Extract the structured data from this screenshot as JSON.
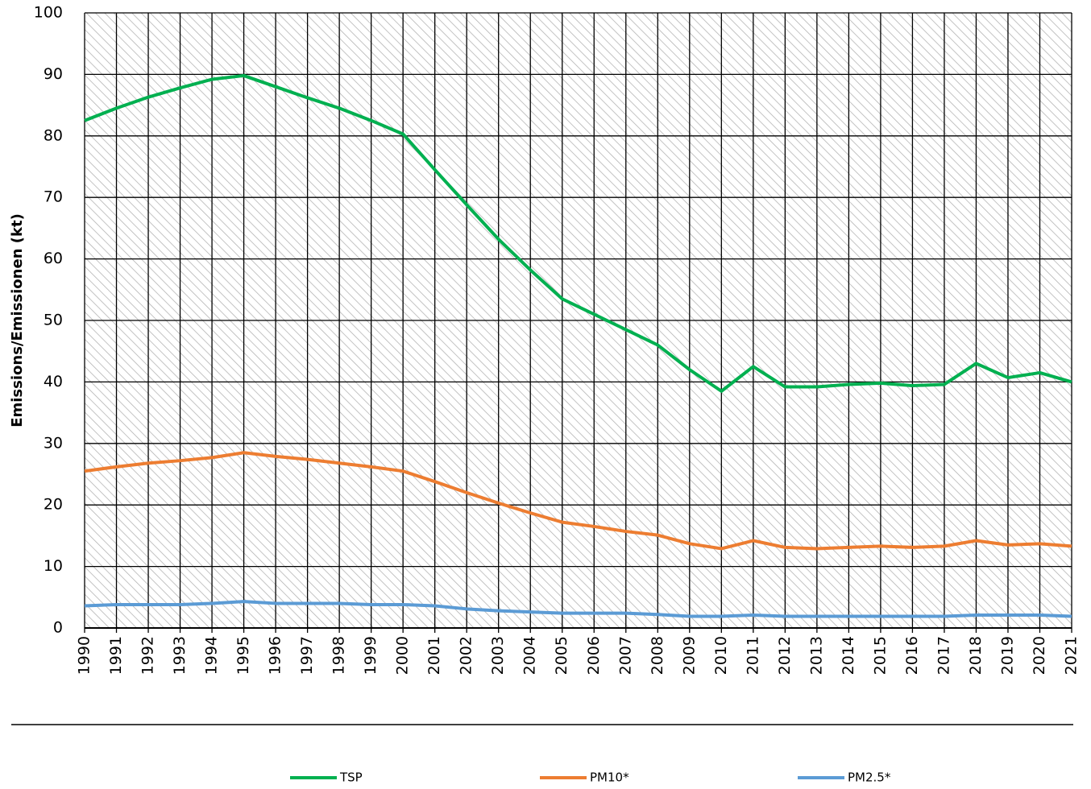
{
  "chart_data": {
    "type": "line",
    "y_label": "Emissions/Emissionen (kt)",
    "categories": [
      "1990",
      "1991",
      "1992",
      "1993",
      "1994",
      "1995",
      "1996",
      "1997",
      "1998",
      "1999",
      "2000",
      "2001",
      "2002",
      "2003",
      "2004",
      "2005",
      "2006",
      "2007",
      "2008",
      "2009",
      "2010",
      "2011",
      "2012",
      "2013",
      "2014",
      "2015",
      "2016",
      "2017",
      "2018",
      "2019",
      "2020",
      "2021"
    ],
    "series": [
      {
        "name": "TSP",
        "color": "#00b050",
        "values": [
          82.5,
          84.5,
          86.3,
          87.8,
          89.2,
          89.8,
          88.0,
          86.2,
          84.5,
          82.5,
          80.3,
          74.5,
          68.8,
          63.2,
          58.2,
          53.5,
          51.0,
          48.5,
          46.0,
          42.0,
          38.5,
          42.5,
          39.2,
          39.2,
          39.6,
          39.8,
          39.4,
          39.6,
          43.0,
          40.7,
          41.5,
          40.0
        ]
      },
      {
        "name": "PM10*",
        "color": "#ed7d31",
        "values": [
          25.5,
          26.2,
          26.8,
          27.2,
          27.7,
          28.5,
          27.9,
          27.4,
          26.8,
          26.2,
          25.5,
          23.8,
          22.0,
          20.3,
          18.7,
          17.2,
          16.5,
          15.7,
          15.1,
          13.7,
          12.9,
          14.2,
          13.1,
          12.9,
          13.1,
          13.3,
          13.1,
          13.3,
          14.2,
          13.5,
          13.7,
          13.3
        ]
      },
      {
        "name": "PM2.5*",
        "color": "#5b9bd5",
        "values": [
          3.6,
          3.8,
          3.8,
          3.8,
          4.0,
          4.3,
          4.0,
          4.0,
          4.0,
          3.8,
          3.8,
          3.6,
          3.1,
          2.8,
          2.6,
          2.4,
          2.4,
          2.4,
          2.2,
          1.9,
          1.9,
          2.1,
          1.9,
          1.9,
          1.9,
          1.9,
          1.9,
          1.9,
          2.1,
          2.1,
          2.1,
          1.9
        ]
      }
    ],
    "ylim": [
      0,
      100
    ],
    "yticks": [
      0,
      10,
      20,
      30,
      40,
      50,
      60,
      70,
      80,
      90,
      100
    ],
    "grid": true,
    "legend": "bottom"
  }
}
